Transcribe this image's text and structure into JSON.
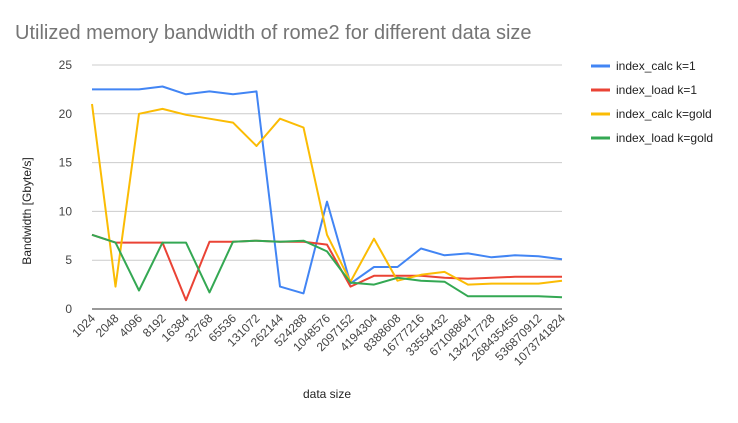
{
  "chart_data": {
    "type": "line",
    "title": "Utilized memory bandwidth of rome2 for different data size",
    "xlabel": "data size",
    "ylabel": "Bandwidth [Gbyte/s]",
    "ylim": [
      0,
      25
    ],
    "yticks": [
      "0",
      "5",
      "10",
      "15",
      "20",
      "25"
    ],
    "grid": true,
    "legend_position": "right",
    "categories": [
      "1024",
      "2048",
      "4096",
      "8192",
      "16384",
      "32768",
      "65536",
      "131072",
      "262144",
      "524288",
      "1048576",
      "2097152",
      "4194304",
      "8388608",
      "16777216",
      "33554432",
      "67108864",
      "134217728",
      "268435456",
      "536870912",
      "1073741824"
    ],
    "series": [
      {
        "name": "index_calc k=1",
        "color": "#4285f4",
        "values": [
          22.5,
          22.5,
          22.5,
          22.8,
          22.0,
          22.3,
          22.0,
          22.3,
          2.3,
          1.6,
          11.0,
          2.6,
          4.3,
          4.3,
          6.2,
          5.5,
          5.7,
          5.3,
          5.5,
          5.4,
          5.1
        ]
      },
      {
        "name": "index_load k=1",
        "color": "#ea4335",
        "values": [
          7.6,
          6.8,
          6.8,
          6.8,
          0.9,
          6.9,
          6.9,
          7.0,
          6.9,
          6.9,
          6.6,
          2.3,
          3.4,
          3.4,
          3.4,
          3.2,
          3.1,
          3.2,
          3.3,
          3.3,
          3.3
        ]
      },
      {
        "name": "index_calc k=gold",
        "color": "#fbbc04",
        "values": [
          21.0,
          2.3,
          20.0,
          20.5,
          19.9,
          19.5,
          19.1,
          16.7,
          19.5,
          18.6,
          7.6,
          2.8,
          7.2,
          2.9,
          3.5,
          3.8,
          2.5,
          2.6,
          2.6,
          2.6,
          2.9
        ]
      },
      {
        "name": "index_load k=gold",
        "color": "#34a853",
        "values": [
          7.6,
          6.8,
          1.9,
          6.8,
          6.8,
          1.7,
          6.9,
          7.0,
          6.9,
          7.0,
          5.9,
          2.7,
          2.5,
          3.2,
          2.9,
          2.8,
          1.3,
          1.3,
          1.3,
          1.3,
          1.2
        ]
      }
    ]
  }
}
